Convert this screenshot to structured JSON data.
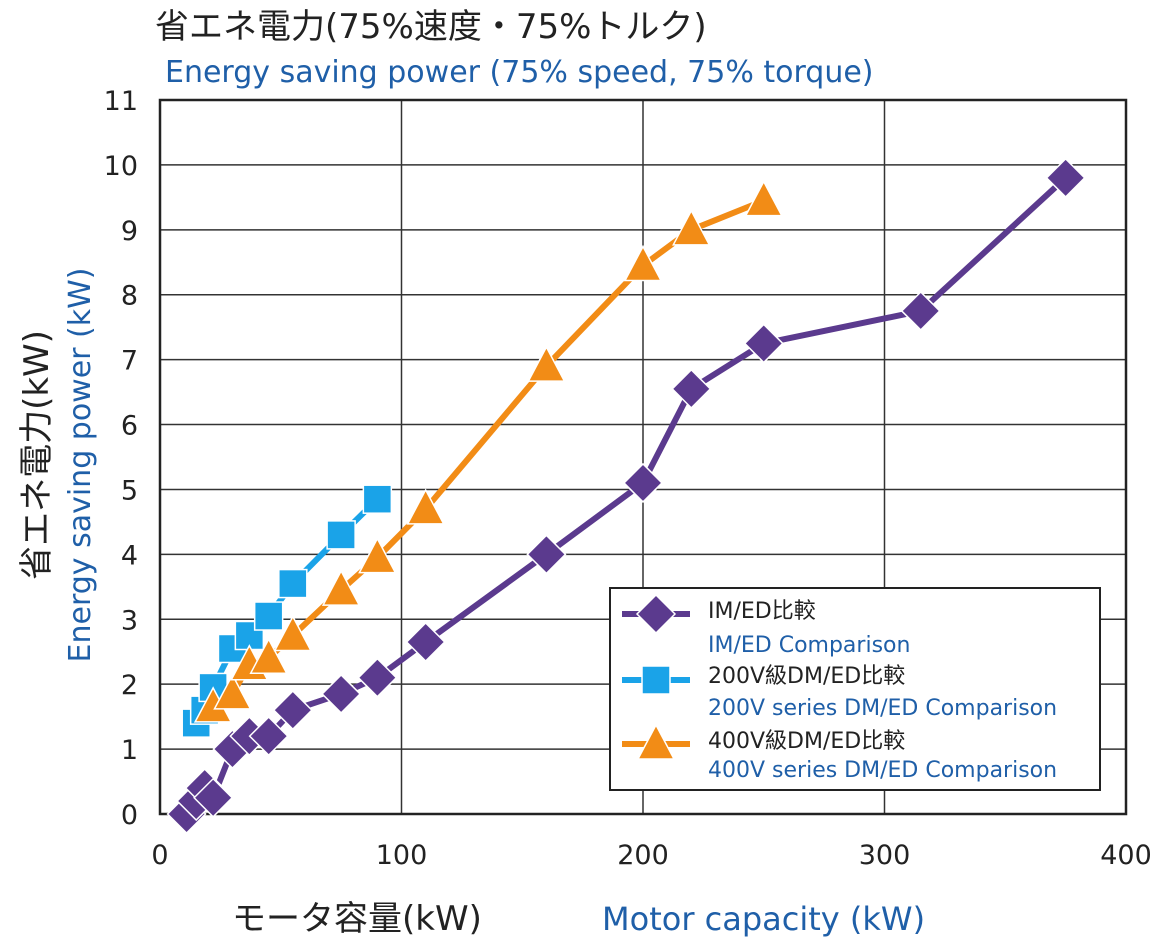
{
  "chart_data": {
    "type": "line",
    "title": "省エネ電力(75%速度・75%トルク)",
    "subtitle": "Energy saving power (75% speed, 75% torque)",
    "xlabel": "モータ容量(kW)",
    "xlabel_en": "Motor capacity (kW)",
    "ylabel": "省エネ電力(kW)",
    "ylabel_en": "Energy saving power (kW)",
    "xlim": [
      0,
      400
    ],
    "ylim": [
      0,
      11
    ],
    "x_ticks": [
      "0",
      "100",
      "200",
      "300",
      "400"
    ],
    "y_ticks": [
      "0",
      "1",
      "2",
      "3",
      "4",
      "5",
      "6",
      "7",
      "8",
      "9",
      "10",
      "11"
    ],
    "grid": true,
    "legend_position": "bottom-right",
    "series": [
      {
        "name": "IM/ED比較",
        "name_en": "IM/ED Comparison",
        "color": "#5b3a8e",
        "marker": "diamond",
        "x": [
          11,
          15,
          18.5,
          22,
          30,
          37,
          45,
          55,
          75,
          90,
          110,
          160,
          200,
          220,
          250,
          315,
          375
        ],
        "y": [
          0.0,
          0.2,
          0.4,
          0.25,
          1.0,
          1.2,
          1.2,
          1.6,
          1.85,
          2.1,
          2.65,
          4.0,
          5.1,
          6.55,
          7.25,
          7.75,
          9.8
        ]
      },
      {
        "name": "200V級DM/ED比較",
        "name_en": "200V series DM/ED Comparison",
        "color": "#1aa3e8",
        "marker": "square",
        "x": [
          15,
          18.5,
          22,
          30,
          37,
          45,
          55,
          75,
          90
        ],
        "y": [
          1.4,
          1.6,
          1.95,
          2.55,
          2.75,
          3.05,
          3.55,
          4.3,
          4.85
        ]
      },
      {
        "name": "400V級DM/ED比較",
        "name_en": "400V series DM/ED Comparison",
        "color": "#f28c16",
        "marker": "triangle",
        "x": [
          22,
          30,
          37,
          45,
          55,
          75,
          90,
          110,
          160,
          200,
          220,
          250
        ],
        "y": [
          1.65,
          1.85,
          2.3,
          2.4,
          2.75,
          3.45,
          3.95,
          4.7,
          6.9,
          8.45,
          9.0,
          9.45
        ]
      }
    ]
  }
}
